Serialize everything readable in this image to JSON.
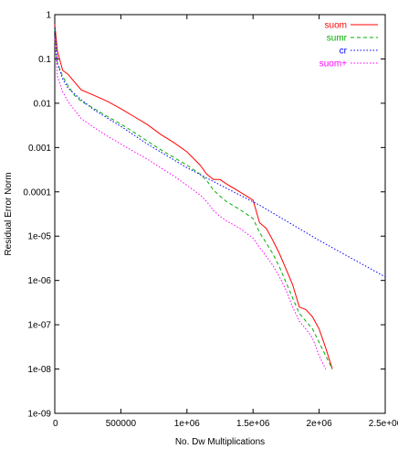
{
  "chart_data": {
    "type": "line",
    "xlabel": "No. Dw Multiplications",
    "ylabel": "Residual Error Norm",
    "xlim": [
      0,
      2500000
    ],
    "ylim": [
      1e-09,
      1
    ],
    "yscale": "log",
    "grid": false,
    "legend_position": "top-right",
    "x_ticks": [
      {
        "value": 0,
        "label": "0"
      },
      {
        "value": 500000,
        "label": "500000"
      },
      {
        "value": 1000000,
        "label": "1e+06"
      },
      {
        "value": 1500000,
        "label": "1.5e+06"
      },
      {
        "value": 2000000,
        "label": "2e+06"
      },
      {
        "value": 2500000,
        "label": "2.5e+06"
      }
    ],
    "y_ticks": [
      {
        "value": 1,
        "label": "1"
      },
      {
        "value": 0.1,
        "label": "0.1"
      },
      {
        "value": 0.01,
        "label": "0.01"
      },
      {
        "value": 0.001,
        "label": "0.001"
      },
      {
        "value": 0.0001,
        "label": "0.0001"
      },
      {
        "value": 1e-05,
        "label": "1e-05"
      },
      {
        "value": 1e-06,
        "label": "1e-06"
      },
      {
        "value": 1e-07,
        "label": "1e-07"
      },
      {
        "value": 1e-08,
        "label": "1e-08"
      },
      {
        "value": 1e-09,
        "label": "1e-09"
      }
    ],
    "series": [
      {
        "name": "suom",
        "color": "#ff0000",
        "dash": "solid",
        "x": [
          0,
          20000,
          60000,
          100000,
          150000,
          200000,
          300000,
          400000,
          500000,
          600000,
          700000,
          800000,
          900000,
          1000000,
          1100000,
          1150000,
          1200000,
          1250000,
          1300000,
          1400000,
          1500000,
          1550000,
          1600000,
          1650000,
          1700000,
          1750000,
          1800000,
          1850000,
          1900000,
          1950000,
          2000000,
          2050000,
          2100000
        ],
        "y": [
          0.6,
          0.15,
          0.055,
          0.045,
          0.03,
          0.02,
          0.015,
          0.011,
          0.0075,
          0.005,
          0.0033,
          0.002,
          0.0013,
          0.0008,
          0.0004,
          0.00025,
          0.00019,
          0.00019,
          0.00015,
          0.0001,
          6.5e-05,
          2e-05,
          1.5e-05,
          8e-06,
          4e-06,
          1.8e-06,
          8e-07,
          2.5e-07,
          2.2e-07,
          1.5e-07,
          8e-08,
          3e-08,
          1e-08
        ]
      },
      {
        "name": "sumr",
        "color": "#00b000",
        "dash": "dashed",
        "x": [
          0,
          20000,
          60000,
          100000,
          150000,
          200000,
          300000,
          400000,
          500000,
          600000,
          700000,
          800000,
          900000,
          1000000,
          1100000,
          1150000,
          1200000,
          1250000,
          1300000,
          1400000,
          1500000,
          1550000,
          1600000,
          1650000,
          1700000,
          1750000,
          1800000,
          1850000,
          1900000,
          1950000,
          2000000,
          2050000,
          2100000
        ],
        "y": [
          0.5,
          0.08,
          0.04,
          0.025,
          0.015,
          0.011,
          0.0075,
          0.005,
          0.0034,
          0.0022,
          0.0014,
          0.0009,
          0.0006,
          0.0004,
          0.00025,
          0.00018,
          0.00011,
          8e-05,
          6e-05,
          4e-05,
          2.5e-05,
          1.2e-05,
          7e-06,
          4e-06,
          2e-06,
          9e-07,
          4e-07,
          1.8e-07,
          1.2e-07,
          8e-08,
          4e-08,
          2e-08,
          1e-08
        ]
      },
      {
        "name": "cr",
        "color": "#0000ff",
        "dash": "dotted",
        "x": [
          0,
          20000,
          60000,
          100000,
          200000,
          300000,
          500000,
          700000,
          1000000,
          1300000,
          1550000,
          2000000,
          2500000
        ],
        "y": [
          0.5,
          0.08,
          0.035,
          0.022,
          0.012,
          0.007,
          0.003,
          0.0012,
          0.00035,
          0.00012,
          5e-05,
          8e-06,
          1.2e-06
        ]
      },
      {
        "name": "suom+",
        "color": "#ff00ff",
        "dash": "dotted",
        "x": [
          0,
          20000,
          60000,
          100000,
          150000,
          200000,
          300000,
          400000,
          500000,
          600000,
          700000,
          800000,
          900000,
          1000000,
          1100000,
          1150000,
          1200000,
          1250000,
          1300000,
          1400000,
          1500000,
          1550000,
          1600000,
          1650000,
          1700000,
          1750000,
          1800000,
          1850000,
          1900000,
          1950000,
          2000000,
          2050000
        ],
        "y": [
          0.3,
          0.04,
          0.018,
          0.011,
          0.007,
          0.0045,
          0.0028,
          0.0018,
          0.0012,
          0.0008,
          0.00055,
          0.00035,
          0.00023,
          0.00014,
          8.5e-05,
          6e-05,
          3.8e-05,
          2.8e-05,
          2.2e-05,
          1.5e-05,
          9e-06,
          5.5e-06,
          3.5e-06,
          2.2e-06,
          1.2e-06,
          6e-07,
          2.5e-07,
          1.2e-07,
          8e-08,
          5e-08,
          2e-08,
          1e-08
        ]
      }
    ]
  }
}
